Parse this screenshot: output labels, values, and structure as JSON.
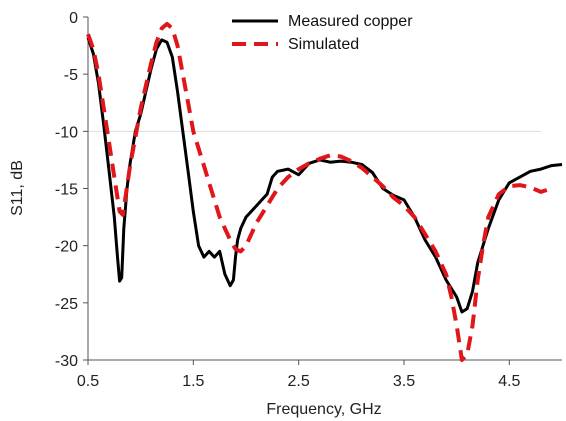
{
  "chart_data": {
    "type": "line",
    "title": "",
    "xlabel": "Frequency, GHz",
    "ylabel": "S11, dB",
    "xlim": [
      0.5,
      5.0
    ],
    "ylim": [
      -30,
      0
    ],
    "x_ticks": [
      {
        "value": 0.5,
        "label": "0.5"
      },
      {
        "value": 1.5,
        "label": "1.5"
      },
      {
        "value": 2.5,
        "label": "2.5"
      },
      {
        "value": 3.5,
        "label": "3.5"
      },
      {
        "value": 4.5,
        "label": "4.5"
      }
    ],
    "y_ticks": [
      {
        "value": 0,
        "label": "0"
      },
      {
        "value": -5,
        "label": "-5"
      },
      {
        "value": -10,
        "label": "-10"
      },
      {
        "value": -15,
        "label": "-15"
      },
      {
        "value": -20,
        "label": "-20"
      },
      {
        "value": -25,
        "label": "-25"
      },
      {
        "value": -30,
        "label": "-30"
      }
    ],
    "reference_lines": [
      {
        "y": -10,
        "x_end": 4.8,
        "color": "#dddddd"
      }
    ],
    "grid": false,
    "legend_position": "top-right",
    "series": [
      {
        "name": "Measured copper",
        "color": "#000000",
        "style": "solid",
        "points": [
          [
            0.5,
            -1.8
          ],
          [
            0.55,
            -3.2
          ],
          [
            0.6,
            -5.8
          ],
          [
            0.65,
            -9.5
          ],
          [
            0.7,
            -13.5
          ],
          [
            0.75,
            -17.5
          ],
          [
            0.78,
            -21.0
          ],
          [
            0.8,
            -23.1
          ],
          [
            0.82,
            -22.8
          ],
          [
            0.84,
            -18.5
          ],
          [
            0.87,
            -15.0
          ],
          [
            0.9,
            -12.8
          ],
          [
            0.95,
            -10.0
          ],
          [
            1.0,
            -8.5
          ],
          [
            1.05,
            -6.5
          ],
          [
            1.1,
            -4.5
          ],
          [
            1.15,
            -2.8
          ],
          [
            1.2,
            -2.0
          ],
          [
            1.25,
            -2.2
          ],
          [
            1.3,
            -3.5
          ],
          [
            1.35,
            -6.5
          ],
          [
            1.4,
            -10.0
          ],
          [
            1.45,
            -13.5
          ],
          [
            1.5,
            -17.0
          ],
          [
            1.55,
            -20.0
          ],
          [
            1.6,
            -21.0
          ],
          [
            1.65,
            -20.5
          ],
          [
            1.7,
            -21.0
          ],
          [
            1.75,
            -20.5
          ],
          [
            1.8,
            -22.5
          ],
          [
            1.85,
            -23.5
          ],
          [
            1.88,
            -23.0
          ],
          [
            1.9,
            -21.0
          ],
          [
            1.92,
            -19.5
          ],
          [
            1.95,
            -18.5
          ],
          [
            2.0,
            -17.5
          ],
          [
            2.05,
            -17.0
          ],
          [
            2.1,
            -16.5
          ],
          [
            2.15,
            -16.0
          ],
          [
            2.2,
            -15.5
          ],
          [
            2.25,
            -14.0
          ],
          [
            2.3,
            -13.5
          ],
          [
            2.4,
            -13.3
          ],
          [
            2.5,
            -13.8
          ],
          [
            2.6,
            -12.8
          ],
          [
            2.7,
            -12.5
          ],
          [
            2.8,
            -12.7
          ],
          [
            2.9,
            -12.6
          ],
          [
            3.0,
            -12.7
          ],
          [
            3.1,
            -12.9
          ],
          [
            3.2,
            -13.6
          ],
          [
            3.3,
            -15.0
          ],
          [
            3.4,
            -15.6
          ],
          [
            3.5,
            -16.0
          ],
          [
            3.6,
            -17.5
          ],
          [
            3.7,
            -19.5
          ],
          [
            3.8,
            -21.0
          ],
          [
            3.9,
            -23.0
          ],
          [
            4.0,
            -24.5
          ],
          [
            4.05,
            -25.8
          ],
          [
            4.1,
            -25.5
          ],
          [
            4.15,
            -24.0
          ],
          [
            4.2,
            -21.5
          ],
          [
            4.3,
            -18.5
          ],
          [
            4.4,
            -16.0
          ],
          [
            4.5,
            -14.5
          ],
          [
            4.6,
            -14.0
          ],
          [
            4.7,
            -13.5
          ],
          [
            4.8,
            -13.3
          ],
          [
            4.9,
            -13.0
          ],
          [
            5.0,
            -12.9
          ]
        ]
      },
      {
        "name": "Simulated",
        "color": "#e0161b",
        "style": "dashed",
        "points": [
          [
            0.5,
            -1.5
          ],
          [
            0.55,
            -2.8
          ],
          [
            0.6,
            -5.0
          ],
          [
            0.65,
            -8.0
          ],
          [
            0.7,
            -11.0
          ],
          [
            0.75,
            -14.0
          ],
          [
            0.8,
            -17.0
          ],
          [
            0.83,
            -17.3
          ],
          [
            0.86,
            -15.5
          ],
          [
            0.9,
            -13.0
          ],
          [
            0.95,
            -10.5
          ],
          [
            1.0,
            -8.0
          ],
          [
            1.05,
            -6.0
          ],
          [
            1.1,
            -4.0
          ],
          [
            1.15,
            -2.2
          ],
          [
            1.2,
            -1.0
          ],
          [
            1.25,
            -0.6
          ],
          [
            1.3,
            -1.0
          ],
          [
            1.35,
            -2.5
          ],
          [
            1.4,
            -5.0
          ],
          [
            1.45,
            -7.5
          ],
          [
            1.5,
            -10.0
          ],
          [
            1.55,
            -11.5
          ],
          [
            1.6,
            -13.0
          ],
          [
            1.65,
            -14.5
          ],
          [
            1.7,
            -16.0
          ],
          [
            1.75,
            -17.5
          ],
          [
            1.8,
            -18.5
          ],
          [
            1.85,
            -19.5
          ],
          [
            1.9,
            -20.3
          ],
          [
            1.95,
            -20.5
          ],
          [
            2.0,
            -20.0
          ],
          [
            2.05,
            -19.0
          ],
          [
            2.1,
            -18.0
          ],
          [
            2.2,
            -16.5
          ],
          [
            2.3,
            -15.0
          ],
          [
            2.4,
            -14.0
          ],
          [
            2.5,
            -13.3
          ],
          [
            2.6,
            -12.8
          ],
          [
            2.7,
            -12.4
          ],
          [
            2.8,
            -12.1
          ],
          [
            2.9,
            -12.2
          ],
          [
            3.0,
            -12.6
          ],
          [
            3.1,
            -13.2
          ],
          [
            3.2,
            -14.0
          ],
          [
            3.3,
            -14.8
          ],
          [
            3.4,
            -15.8
          ],
          [
            3.5,
            -16.5
          ],
          [
            3.6,
            -17.5
          ],
          [
            3.7,
            -19.0
          ],
          [
            3.8,
            -20.5
          ],
          [
            3.9,
            -22.5
          ],
          [
            3.95,
            -24.5
          ],
          [
            4.0,
            -27.0
          ],
          [
            4.05,
            -30.0
          ],
          [
            4.1,
            -29.5
          ],
          [
            4.15,
            -27.0
          ],
          [
            4.2,
            -23.0
          ],
          [
            4.25,
            -20.0
          ],
          [
            4.3,
            -17.5
          ],
          [
            4.4,
            -15.5
          ],
          [
            4.5,
            -14.8
          ],
          [
            4.6,
            -14.7
          ],
          [
            4.7,
            -14.9
          ],
          [
            4.8,
            -15.3
          ],
          [
            4.9,
            -15.0
          ]
        ]
      }
    ]
  }
}
